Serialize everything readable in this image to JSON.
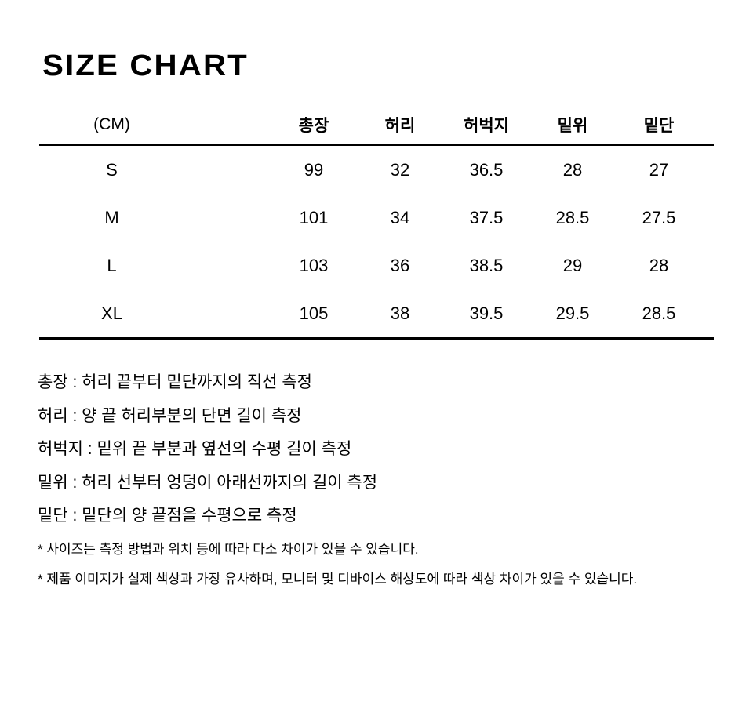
{
  "title": "SIZE CHART",
  "table": {
    "unit_label": "(CM)",
    "columns": [
      "총장",
      "허리",
      "허벅지",
      "밑위",
      "밑단"
    ],
    "rows": [
      {
        "size": "S",
        "values": [
          "99",
          "32",
          "36.5",
          "28",
          "27"
        ]
      },
      {
        "size": "M",
        "values": [
          "101",
          "34",
          "37.5",
          "28.5",
          "27.5"
        ]
      },
      {
        "size": "L",
        "values": [
          "103",
          "36",
          "38.5",
          "29",
          "28"
        ]
      },
      {
        "size": "XL",
        "values": [
          "105",
          "38",
          "39.5",
          "29.5",
          "28.5"
        ]
      }
    ]
  },
  "measurement_guide": [
    "총장 : 허리 끝부터 밑단까지의 직선 측정",
    "허리 : 양 끝 허리부분의 단면 길이 측정",
    "허벅지 : 밑위 끝 부분과 옆선의 수평 길이 측정",
    "밑위 : 허리 선부터 엉덩이 아래선까지의 길이 측정",
    "밑단 : 밑단의 양 끝점을 수평으로 측정"
  ],
  "notes": [
    "* 사이즈는 측정 방법과 위치 등에 따라 다소 차이가 있을 수 있습니다.",
    "* 제품 이미지가 실제 색상과 가장 유사하며, 모니터 및 디바이스 해상도에 따라 색상 차이가 있을 수 있습니다."
  ],
  "colors": {
    "text": "#000000",
    "background": "#ffffff",
    "rule": "#000000"
  }
}
